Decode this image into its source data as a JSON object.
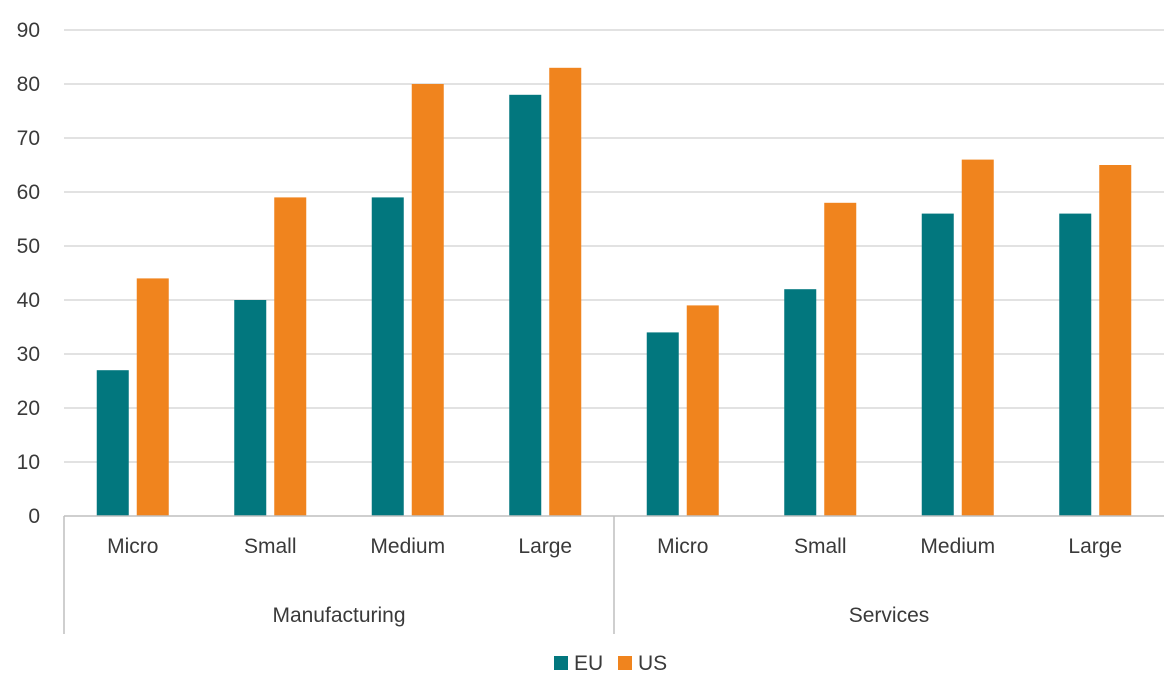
{
  "chart_data": {
    "type": "bar",
    "title": "",
    "xlabel": "",
    "ylabel": "",
    "ylim": [
      0,
      90
    ],
    "yticks": [
      0,
      10,
      20,
      30,
      40,
      50,
      60,
      70,
      80,
      90
    ],
    "grid": true,
    "legend_position": "bottom",
    "groups": [
      {
        "name": "Manufacturing",
        "categories": [
          "Micro",
          "Small",
          "Medium",
          "Large"
        ]
      },
      {
        "name": "Services",
        "categories": [
          "Micro",
          "Small",
          "Medium",
          "Large"
        ]
      }
    ],
    "series": [
      {
        "name": "EU",
        "color": "#02777e",
        "values": [
          27,
          40,
          59,
          78,
          34,
          42,
          56,
          56
        ]
      },
      {
        "name": "US",
        "color": "#f0841e",
        "values": [
          44,
          59,
          80,
          83,
          39,
          58,
          66,
          65
        ]
      }
    ]
  }
}
